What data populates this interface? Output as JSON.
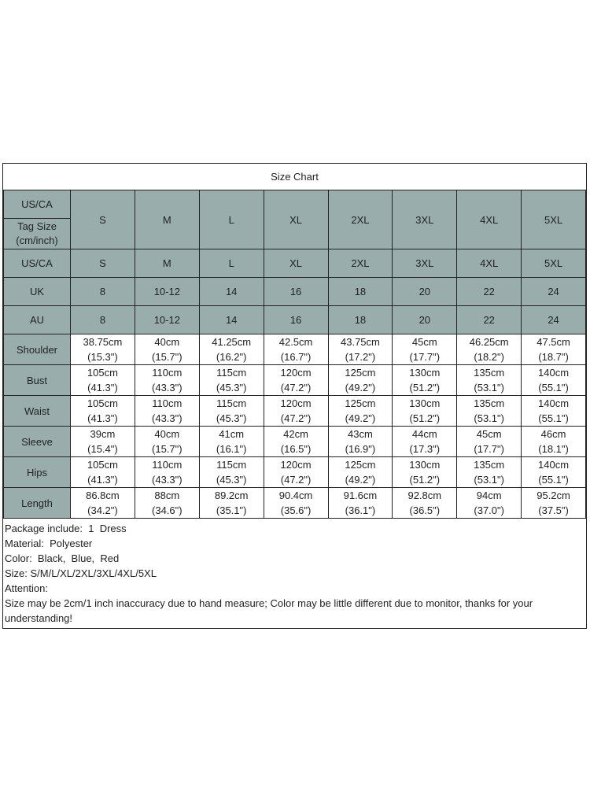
{
  "title": "Size Chart",
  "header": {
    "region_label": "US/CA",
    "tag_label": "Tag Size (cm/inch)",
    "sizes": [
      "S",
      "M",
      "L",
      "XL",
      "2XL",
      "3XL",
      "4XL",
      "5XL"
    ]
  },
  "conversion_rows": [
    {
      "label": "US/CA",
      "values": [
        "S",
        "M",
        "L",
        "XL",
        "2XL",
        "3XL",
        "4XL",
        "5XL"
      ]
    },
    {
      "label": "UK",
      "values": [
        "8",
        "10-12",
        "14",
        "16",
        "18",
        "20",
        "22",
        "24"
      ]
    },
    {
      "label": "AU",
      "values": [
        "8",
        "10-12",
        "14",
        "16",
        "18",
        "20",
        "22",
        "24"
      ]
    }
  ],
  "measurement_rows": [
    {
      "label": "Shoulder",
      "cm": [
        "38.75cm",
        "40cm",
        "41.25cm",
        "42.5cm",
        "43.75cm",
        "45cm",
        "46.25cm",
        "47.5cm"
      ],
      "inch": [
        "(15.3\")",
        "(15.7\")",
        "(16.2\")",
        "(16.7\")",
        "(17.2\")",
        "(17.7\")",
        "(18.2\")",
        "(18.7\")"
      ]
    },
    {
      "label": "Bust",
      "cm": [
        "105cm",
        "110cm",
        "115cm",
        "120cm",
        "125cm",
        "130cm",
        "135cm",
        "140cm"
      ],
      "inch": [
        "(41.3\")",
        "(43.3\")",
        "(45.3\")",
        "(47.2\")",
        "(49.2\")",
        "(51.2\")",
        "(53.1\")",
        "(55.1\")"
      ]
    },
    {
      "label": "Waist",
      "cm": [
        "105cm",
        "110cm",
        "115cm",
        "120cm",
        "125cm",
        "130cm",
        "135cm",
        "140cm"
      ],
      "inch": [
        "(41.3\")",
        "(43.3\")",
        "(45.3\")",
        "(47.2\")",
        "(49.2\")",
        "(51.2\")",
        "(53.1\")",
        "(55.1\")"
      ]
    },
    {
      "label": "Sleeve",
      "cm": [
        "39cm",
        "40cm",
        "41cm",
        "42cm",
        "43cm",
        "44cm",
        "45cm",
        "46cm"
      ],
      "inch": [
        "(15.4\")",
        "(15.7\")",
        "(16.1\")",
        "(16.5\")",
        "(16.9\")",
        "(17.3\")",
        "(17.7\")",
        "(18.1\")"
      ]
    },
    {
      "label": "Hips",
      "cm": [
        "105cm",
        "110cm",
        "115cm",
        "120cm",
        "125cm",
        "130cm",
        "135cm",
        "140cm"
      ],
      "inch": [
        "(41.3\")",
        "(43.3\")",
        "(45.3\")",
        "(47.2\")",
        "(49.2\")",
        "(51.2\")",
        "(53.1\")",
        "(55.1\")"
      ]
    },
    {
      "label": "Length",
      "cm": [
        "86.8cm",
        "88cm",
        "89.2cm",
        "90.4cm",
        "91.6cm",
        "92.8cm",
        "94cm",
        "95.2cm"
      ],
      "inch": [
        "(34.2\")",
        "(34.6\")",
        "(35.1\")",
        "(35.6\")",
        "(36.1\")",
        "(36.5\")",
        "(37.0\")",
        "(37.5\")"
      ]
    }
  ],
  "notes": [
    "Package include:  1  Dress",
    "Material:  Polyester",
    "Color:  Black,  Blue,  Red",
    "Size: S/M/L/XL/2XL/3XL/4XL/5XL",
    "Attention:",
    "Size may be 2cm/1 inch inaccuracy due to hand measure; Color may be little different due to monitor, thanks for your understanding!"
  ],
  "colors": {
    "header_bg": "#9aadad",
    "border": "#222222"
  }
}
